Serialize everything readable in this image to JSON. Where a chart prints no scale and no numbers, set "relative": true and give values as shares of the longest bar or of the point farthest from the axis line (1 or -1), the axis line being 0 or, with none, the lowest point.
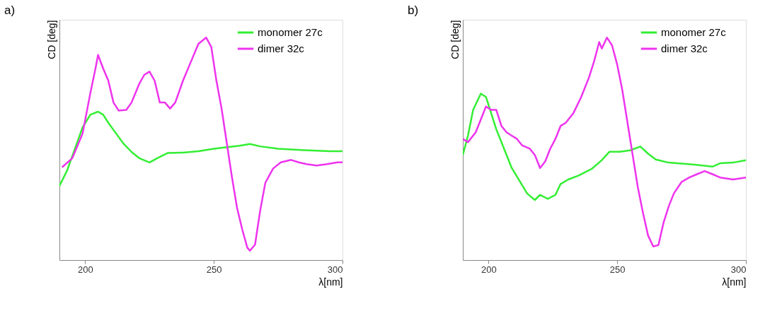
{
  "chart_data": [
    {
      "type": "line",
      "title": "a)",
      "xlabel": "λ[nm]",
      "ylabel": "CD [deg]",
      "relative": true,
      "xlim": [
        190,
        300
      ],
      "xticks": [
        200,
        250,
        300
      ],
      "tick_labels": "x",
      "legend": "top right",
      "grid": false,
      "marker": "none",
      "line_style": "solid",
      "series": [
        {
          "name": "monomer 27c",
          "color": "#33ee33",
          "x": [
            190,
            193,
            196,
            199,
            202,
            205,
            207,
            209,
            212,
            215,
            218,
            221,
            225,
            228,
            232,
            238,
            244,
            250,
            254,
            260,
            264,
            268,
            275,
            285,
            295,
            300
          ],
          "values": [
            0.333,
            0.403,
            0.5,
            0.597,
            0.653,
            0.667,
            0.653,
            0.617,
            0.569,
            0.522,
            0.486,
            0.458,
            0.439,
            0.458,
            0.481,
            0.483,
            0.489,
            0.5,
            0.506,
            0.514,
            0.522,
            0.511,
            0.5,
            0.494,
            0.489,
            0.489
          ]
        },
        {
          "name": "dimer 32c",
          "color": "#ee33ee",
          "x": [
            191,
            195,
            199,
            202,
            204,
            205,
            207,
            209,
            211,
            213,
            216,
            218,
            221,
            223,
            225,
            227,
            229,
            231,
            233,
            235,
            238,
            241,
            244,
            247,
            249,
            251,
            253,
            255,
            257,
            259,
            261,
            263,
            264,
            266,
            268,
            270,
            273,
            276,
            280,
            283,
            286,
            290,
            294,
            298,
            300
          ],
          "values": [
            0.417,
            0.458,
            0.569,
            0.75,
            0.861,
            0.922,
            0.861,
            0.806,
            0.708,
            0.672,
            0.675,
            0.708,
            0.792,
            0.833,
            0.847,
            0.806,
            0.708,
            0.708,
            0.681,
            0.708,
            0.806,
            0.889,
            0.972,
            1,
            0.958,
            0.806,
            0.681,
            0.528,
            0.375,
            0.236,
            0.139,
            0.056,
            0.042,
            0.069,
            0.222,
            0.347,
            0.411,
            0.439,
            0.45,
            0.439,
            0.431,
            0.425,
            0.431,
            0.439,
            0.439
          ]
        }
      ]
    },
    {
      "type": "line",
      "title": "b)",
      "xlabel": "λ[nm]",
      "ylabel": "CD [deg]",
      "relative": true,
      "xlim": [
        190,
        300
      ],
      "xticks": [
        200,
        250,
        300
      ],
      "tick_labels": "x",
      "legend": "top right",
      "grid": false,
      "marker": "none",
      "line_style": "solid",
      "series": [
        {
          "name": "monomer 27c",
          "color": "#33ee33",
          "x": [
            190,
            192,
            194,
            197,
            199,
            201,
            203,
            206,
            209,
            212,
            215,
            218,
            220,
            223,
            226,
            228,
            231,
            235,
            240,
            244,
            247,
            251,
            255,
            259,
            262,
            265,
            270,
            280,
            287,
            290,
            295,
            300
          ],
          "values": [
            0.472,
            0.559,
            0.675,
            0.748,
            0.733,
            0.661,
            0.588,
            0.501,
            0.414,
            0.357,
            0.299,
            0.27,
            0.293,
            0.275,
            0.293,
            0.342,
            0.362,
            0.38,
            0.409,
            0.449,
            0.487,
            0.487,
            0.493,
            0.51,
            0.478,
            0.452,
            0.438,
            0.429,
            0.42,
            0.435,
            0.438,
            0.449
          ]
        },
        {
          "name": "dimer 32c",
          "color": "#ee33ee",
          "x": [
            190,
            192,
            195,
            197,
            199,
            201,
            203,
            205,
            207,
            209,
            211,
            213,
            216,
            218,
            220,
            222,
            224,
            226,
            228,
            230,
            233,
            236,
            239,
            241,
            243,
            244,
            246,
            248,
            250,
            252,
            254,
            256,
            258,
            260,
            262,
            264,
            266,
            268,
            270,
            272,
            275,
            278,
            281,
            284,
            287,
            290,
            295,
            300
          ],
          "values": [
            0.545,
            0.53,
            0.574,
            0.632,
            0.69,
            0.675,
            0.675,
            0.603,
            0.574,
            0.559,
            0.545,
            0.516,
            0.501,
            0.472,
            0.414,
            0.443,
            0.501,
            0.545,
            0.603,
            0.617,
            0.661,
            0.733,
            0.82,
            0.893,
            0.98,
            0.951,
            1,
            0.965,
            0.878,
            0.762,
            0.617,
            0.472,
            0.328,
            0.212,
            0.11,
            0.061,
            0.067,
            0.168,
            0.241,
            0.299,
            0.351,
            0.371,
            0.386,
            0.4,
            0.386,
            0.371,
            0.362,
            0.371
          ]
        }
      ]
    }
  ]
}
